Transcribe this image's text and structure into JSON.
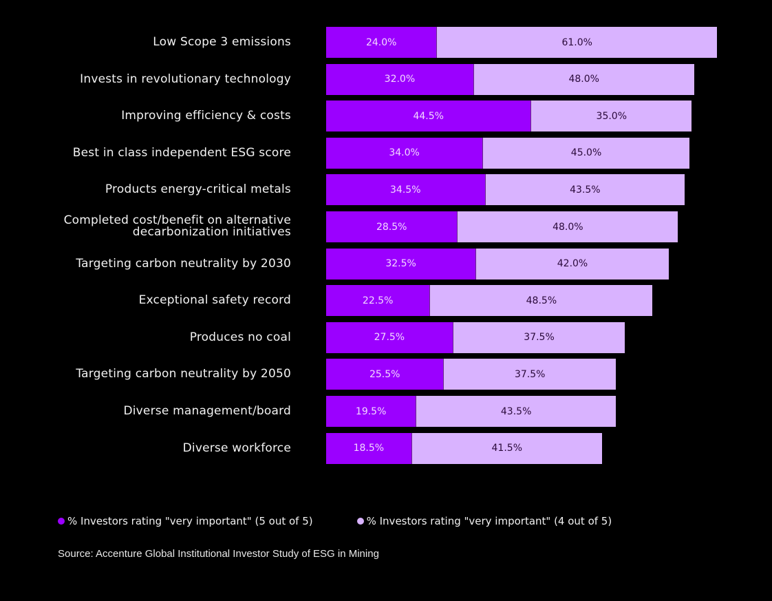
{
  "chart_data": {
    "type": "bar",
    "orientation": "horizontal",
    "stacked": true,
    "title": "",
    "xlabel": "",
    "ylabel": "",
    "grid": false,
    "legend_position": "bottom",
    "xlim": [
      0,
      85
    ],
    "categories": [
      "Low Scope 3 emissions",
      "Invests in revolutionary technology",
      "Improving efficiency & costs",
      "Best in class independent ESG score",
      "Products energy-critical metals",
      "Completed cost/benefit on alternative decarbonization initiatives",
      "Targeting carbon neutrality by 2030",
      "Exceptional safety record",
      "Produces no coal",
      "Targeting carbon neutrality by 2050",
      "Diverse management/board",
      "Diverse workforce"
    ],
    "category_lines": [
      [
        "Low Scope 3 emissions"
      ],
      [
        "Invests in revolutionary technology"
      ],
      [
        "Improving efficiency & costs"
      ],
      [
        "Best in class independent ESG score"
      ],
      [
        "Products energy-critical metals"
      ],
      [
        "Completed cost/benefit on alternative",
        "decarbonization initiatives"
      ],
      [
        "Targeting carbon neutrality by 2030"
      ],
      [
        "Exceptional safety record"
      ],
      [
        "Produces no coal"
      ],
      [
        "Targeting carbon neutrality by 2050"
      ],
      [
        "Diverse management/board"
      ],
      [
        "Diverse workforce"
      ]
    ],
    "series": [
      {
        "name": "% Investors rating \"very important\" (5 out of 5)",
        "color": "#9b00ff",
        "values": [
          24.0,
          32.0,
          44.5,
          34.0,
          34.5,
          28.5,
          32.5,
          22.5,
          27.5,
          25.5,
          19.5,
          18.5
        ]
      },
      {
        "name": "% Investors rating \"very important\" (4 out of 5)",
        "color": "#d9b3ff",
        "values": [
          61.0,
          48.0,
          35.0,
          45.0,
          43.5,
          48.0,
          42.0,
          48.5,
          37.5,
          37.5,
          43.5,
          41.5
        ]
      }
    ],
    "value_suffix": "%"
  },
  "legend": {
    "items": [
      {
        "label": "% Investors rating \"very important\" (5 out of 5)",
        "color": "#9b00ff"
      },
      {
        "label": "% Investors rating \"very important\" (4 out of 5)",
        "color": "#d9b3ff"
      }
    ]
  },
  "source": "Source: Accenture Global Institutional Investor Study of ESG in Mining"
}
